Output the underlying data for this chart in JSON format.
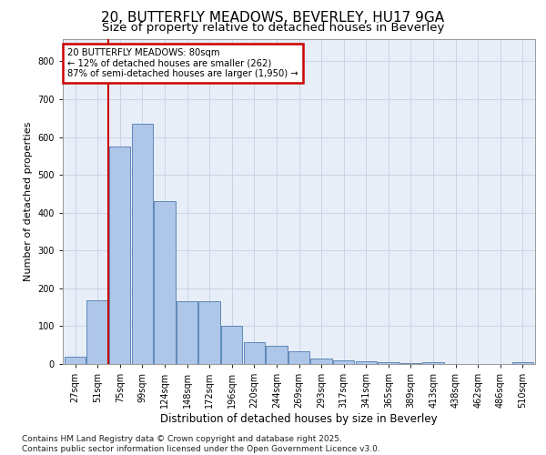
{
  "title_line1": "20, BUTTERFLY MEADOWS, BEVERLEY, HU17 9GA",
  "title_line2": "Size of property relative to detached houses in Beverley",
  "xlabel": "Distribution of detached houses by size in Beverley",
  "ylabel": "Number of detached properties",
  "categories": [
    "27sqm",
    "51sqm",
    "75sqm",
    "99sqm",
    "124sqm",
    "148sqm",
    "172sqm",
    "196sqm",
    "220sqm",
    "244sqm",
    "269sqm",
    "293sqm",
    "317sqm",
    "341sqm",
    "365sqm",
    "389sqm",
    "413sqm",
    "438sqm",
    "462sqm",
    "486sqm",
    "510sqm"
  ],
  "values": [
    20,
    168,
    575,
    635,
    430,
    165,
    165,
    102,
    57,
    47,
    33,
    15,
    10,
    8,
    5,
    3,
    5,
    1,
    1,
    0,
    5
  ],
  "bar_color": "#aec6e8",
  "bar_edge_color": "#4c7baf",
  "grid_color": "#c8d4e8",
  "bg_color": "#e8eef8",
  "vline_x": 1.5,
  "annotation_text": "20 BUTTERFLY MEADOWS: 80sqm\n← 12% of detached houses are smaller (262)\n87% of semi-detached houses are larger (1,950) →",
  "annotation_box_color": "#ffffff",
  "annotation_box_edge": "#cc0000",
  "vline_color": "#cc0000",
  "ylim": [
    0,
    860
  ],
  "yticks": [
    0,
    100,
    200,
    300,
    400,
    500,
    600,
    700,
    800
  ],
  "footer_text": "Contains HM Land Registry data © Crown copyright and database right 2025.\nContains public sector information licensed under the Open Government Licence v3.0.",
  "title_fontsize": 11,
  "subtitle_fontsize": 9.5,
  "axis_label_fontsize": 8.5,
  "tick_fontsize": 7,
  "footer_fontsize": 6.5,
  "ylabel_fontsize": 8
}
